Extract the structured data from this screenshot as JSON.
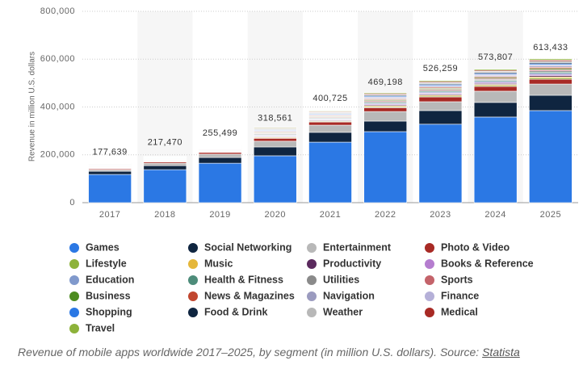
{
  "chart_data": {
    "type": "stacked_bar",
    "y_label": "Revenue in million U.S. dollars",
    "caption": "Revenue of mobile apps worldwide 2017–2025, by segment (in million U.S. dollars). Source: ",
    "source": "Statista",
    "categories": [
      "2017",
      "2018",
      "2019",
      "2020",
      "2021",
      "2022",
      "2023",
      "2024",
      "2025"
    ],
    "ylim": [
      0,
      800000
    ],
    "yticks": [
      0,
      {
        "value": 200000,
        "label": "200,000"
      },
      {
        "value": 400000,
        "label": "400,000"
      },
      {
        "value": 600000,
        "label": "600,000"
      },
      {
        "value": 800000,
        "label": "800,000"
      }
    ],
    "grid": true,
    "totals": {
      "values": [
        177639,
        217470,
        255499,
        318561,
        400725,
        469198,
        526259,
        573807,
        613433
      ],
      "value_labels": [
        "177,639",
        "217,470",
        "255,499",
        "318,561",
        "400,725",
        "469,198",
        "526,259",
        "573,807",
        "613,433"
      ]
    },
    "series": [
      {
        "name": "Games",
        "color": "#2b78e4",
        "values": [
          118000,
          138000,
          165000,
          196000,
          253000,
          297000,
          328000,
          358000,
          385000
        ]
      },
      {
        "name": "Social Networking",
        "color": "#0f2540",
        "values": [
          13000,
          17000,
          24000,
          37000,
          41000,
          44000,
          57000,
          61000,
          64000
        ]
      },
      {
        "name": "Entertainment",
        "color": "#b8b8b8",
        "values": [
          6000,
          10000,
          14000,
          24000,
          30000,
          40000,
          37000,
          47000,
          47000
        ]
      },
      {
        "name": "Photo & Video",
        "color": "#a82a25",
        "values": [
          4000,
          5000,
          7000,
          12000,
          13000,
          16000,
          20000,
          20000,
          20000
        ]
      },
      {
        "name": "Lifestyle",
        "color": "#8db23a",
        "values": [
          1300,
          1400,
          1800,
          2700,
          2700,
          3700,
          4000,
          4200,
          5000
        ]
      },
      {
        "name": "Music",
        "color": "#e5b73a",
        "values": [
          1300,
          1400,
          1800,
          2700,
          2700,
          3700,
          4000,
          4200,
          5000
        ]
      },
      {
        "name": "Productivity",
        "color": "#5b2a5e",
        "values": [
          1300,
          1400,
          1800,
          2700,
          2700,
          3700,
          4000,
          4200,
          5000
        ]
      },
      {
        "name": "Books & Reference",
        "color": "#b57dcf",
        "values": [
          1300,
          1400,
          1800,
          2700,
          2700,
          3700,
          4000,
          4200,
          5000
        ]
      },
      {
        "name": "Education",
        "color": "#8099cc",
        "values": [
          1300,
          1400,
          1800,
          2700,
          2700,
          3700,
          4000,
          4200,
          5000
        ]
      },
      {
        "name": "Health & Fitness",
        "color": "#4d8c7a",
        "values": [
          1300,
          1400,
          1800,
          2700,
          2700,
          3700,
          4000,
          4200,
          5000
        ]
      },
      {
        "name": "Utilities",
        "color": "#8a8a8a",
        "values": [
          1300,
          1400,
          1800,
          2700,
          2700,
          3700,
          4000,
          4200,
          5000
        ]
      },
      {
        "name": "Sports",
        "color": "#c4636a",
        "values": [
          1300,
          1400,
          1800,
          2700,
          2700,
          3700,
          4000,
          4200,
          5000
        ]
      },
      {
        "name": "Business",
        "color": "#4c8b1f",
        "values": [
          1300,
          1400,
          1800,
          2700,
          2700,
          3700,
          4000,
          4200,
          5000
        ]
      },
      {
        "name": "News & Magazines",
        "color": "#c1462f",
        "values": [
          1300,
          1400,
          1800,
          2700,
          2700,
          3700,
          4000,
          4200,
          5000
        ]
      },
      {
        "name": "Navigation",
        "color": "#9b9bbf",
        "values": [
          1300,
          1400,
          1800,
          2700,
          2700,
          3700,
          4000,
          4200,
          5000
        ]
      },
      {
        "name": "Finance",
        "color": "#b5b0d8",
        "values": [
          1300,
          1400,
          1800,
          2700,
          2700,
          3700,
          4000,
          4200,
          5000
        ]
      },
      {
        "name": "Shopping",
        "color": "#2b78e4",
        "values": [
          1300,
          1400,
          1800,
          2700,
          2700,
          3700,
          4000,
          4200,
          5000
        ]
      },
      {
        "name": "Food & Drink",
        "color": "#0f2540",
        "values": [
          1300,
          1400,
          1800,
          2700,
          2700,
          3700,
          4000,
          4200,
          5000
        ]
      },
      {
        "name": "Weather",
        "color": "#b8b8b8",
        "values": [
          1300,
          1400,
          1800,
          2700,
          2700,
          3700,
          4000,
          4200,
          5000
        ]
      },
      {
        "name": "Medical",
        "color": "#a82a25",
        "values": [
          1300,
          1400,
          1800,
          2700,
          2700,
          3700,
          4000,
          4200,
          5000
        ]
      },
      {
        "name": "Travel",
        "color": "#8db23a",
        "values": [
          1300,
          1400,
          1800,
          2700,
          2700,
          3700,
          4000,
          4200,
          5000
        ]
      }
    ]
  }
}
